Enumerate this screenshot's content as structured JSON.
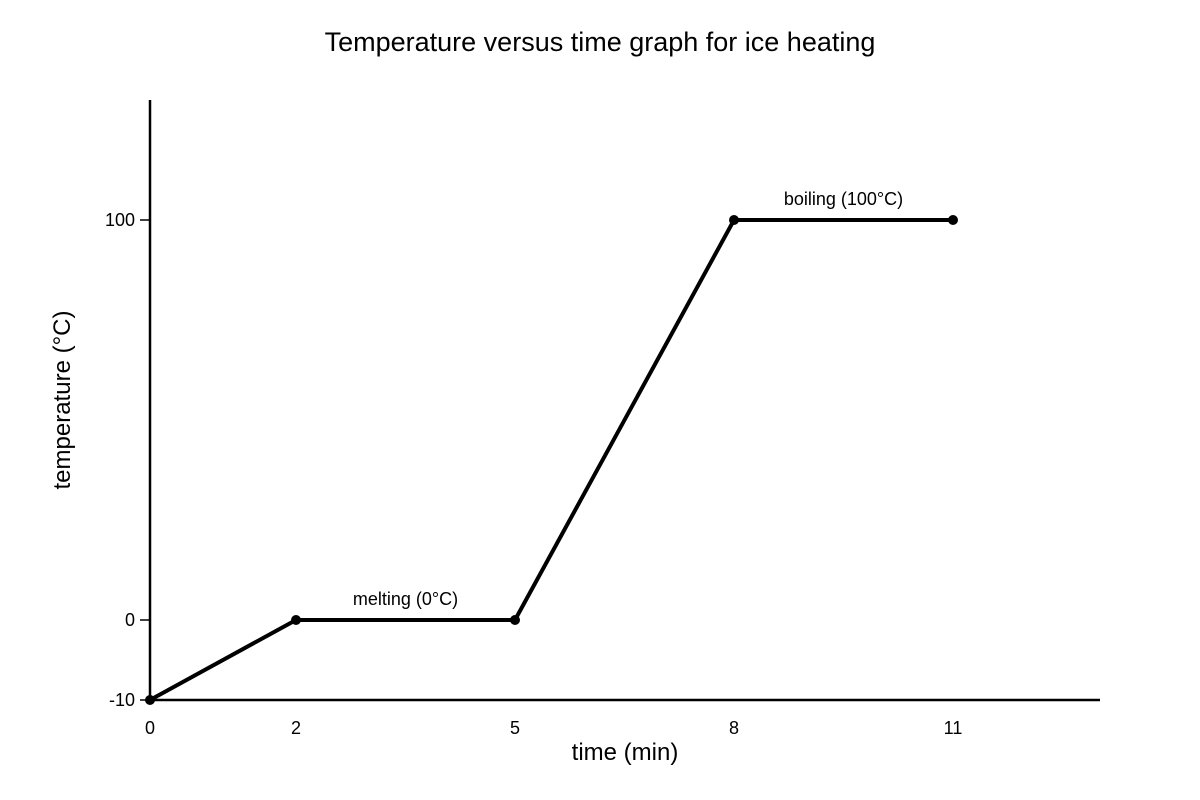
{
  "chart_data": {
    "type": "line",
    "title": "Temperature versus time graph for ice heating",
    "xlabel": "time (min)",
    "ylabel": "temperature (°C)",
    "x_ticks": [
      0,
      2,
      5,
      8,
      11
    ],
    "y_ticks": [
      -10,
      0,
      100
    ],
    "grid": false,
    "series": [
      {
        "x": [
          0,
          2,
          5,
          8,
          11
        ],
        "y": [
          -10,
          0,
          0,
          100,
          100
        ],
        "color": "#000000"
      }
    ],
    "annotations": [
      {
        "text": "melting (0°C)",
        "x": 3.5,
        "y": 0
      },
      {
        "text": "boiling (100°C)",
        "x": 9.5,
        "y": 100
      }
    ]
  }
}
